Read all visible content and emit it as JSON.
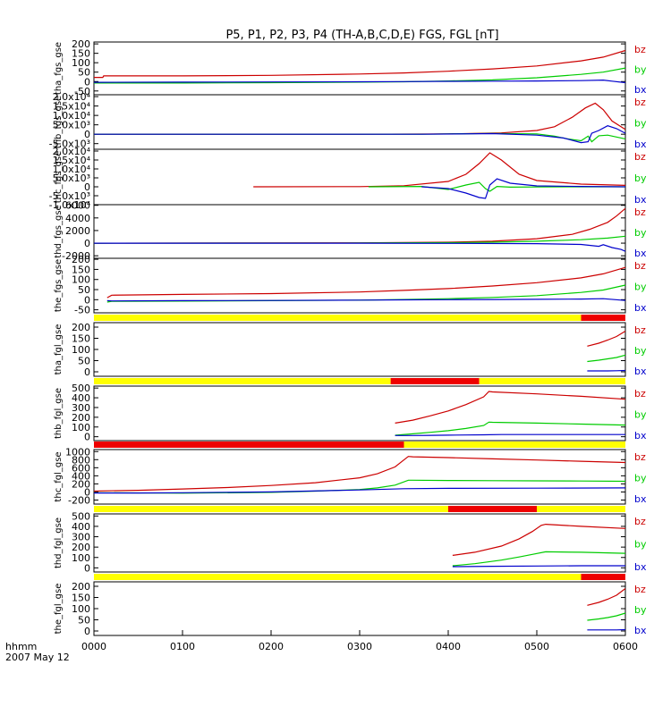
{
  "title": "P5, P1, P2, P3, P4 (TH-A,B,C,D,E) FGS, FGL [nT]",
  "time_axis": {
    "label": "hhmm",
    "date": "2007 May 12",
    "ticks": [
      "0000",
      "0100",
      "0200",
      "0300",
      "0400",
      "0500",
      "0600"
    ],
    "range_hours": [
      0,
      6
    ]
  },
  "colors": {
    "bx": "#0000cc",
    "by": "#00cc00",
    "bz": "#cc0000",
    "bar_yellow": "#ffff00",
    "bar_red": "#ee0000"
  },
  "chart_data": [
    {
      "type": "line",
      "title": "tha_fgs_gse",
      "ylabel": "tha_fgs_gse",
      "ylim": [
        -70,
        210
      ],
      "yticks": [
        "-50",
        "0",
        "50",
        "100",
        "150",
        "200"
      ],
      "legend": [
        "bz",
        "by",
        "bx"
      ],
      "series": [
        {
          "name": "bz",
          "x": [
            0,
            0.1,
            0.11,
            1,
            2,
            3,
            3.5,
            4,
            4.5,
            5,
            5.5,
            5.75,
            6
          ],
          "values": [
            22,
            22,
            30,
            30,
            33,
            40,
            46,
            55,
            67,
            83,
            110,
            130,
            165
          ]
        },
        {
          "name": "by",
          "x": [
            0,
            1,
            2,
            3,
            3.5,
            4,
            4.5,
            5,
            5.5,
            5.75,
            6
          ],
          "values": [
            -8,
            -8,
            -6,
            -3,
            -1,
            3,
            9,
            20,
            38,
            50,
            72
          ]
        },
        {
          "name": "bx",
          "x": [
            0,
            1,
            2,
            3,
            3.5,
            4,
            4.5,
            5,
            5.5,
            5.75,
            5.85,
            6
          ],
          "values": [
            -4,
            -3,
            -2,
            -1,
            0,
            1,
            2,
            3,
            5,
            8,
            2,
            -6
          ]
        }
      ]
    },
    {
      "type": "line",
      "title": "thb_fgs_gse",
      "ylabel": "thb_fgs_gse",
      "ylim": [
        -8000,
        21000
      ],
      "yticks": [
        "-5.0x10³",
        "0",
        "5.0x10³",
        "1.0x10⁴",
        "1.5x10⁴",
        "2.0x10⁴"
      ],
      "legend": [
        "bz",
        "by",
        "bx"
      ],
      "series": [
        {
          "name": "bz",
          "x": [
            0,
            3,
            4,
            4.6,
            5,
            5.2,
            5.4,
            5.55,
            5.66,
            5.75,
            5.85,
            6
          ],
          "values": [
            0,
            0,
            200,
            700,
            2000,
            4000,
            9000,
            14000,
            16500,
            13000,
            7000,
            2500
          ]
        },
        {
          "name": "by",
          "x": [
            0,
            3.7,
            4.5,
            5,
            5.2,
            5.35,
            5.5,
            5.58,
            5.62,
            5.7,
            5.8,
            6
          ],
          "values": [
            0,
            0,
            400,
            200,
            -1000,
            -2500,
            -3500,
            -1000,
            -4000,
            -800,
            -500,
            -2500
          ]
        },
        {
          "name": "bx",
          "x": [
            0,
            3.7,
            4.5,
            5,
            5.3,
            5.5,
            5.58,
            5.62,
            5.7,
            5.8,
            5.9,
            6
          ],
          "values": [
            0,
            0,
            300,
            -500,
            -2000,
            -4500,
            -4000,
            500,
            2000,
            4500,
            3000,
            500
          ]
        }
      ]
    },
    {
      "type": "line",
      "title": "thc_fgs_gse",
      "ylabel": "thc_fgs_gse",
      "ylim": [
        -10000,
        21000
      ],
      "yticks": [
        "-1.0x10⁴",
        "-5.0x10³",
        "0",
        "5.0x10³",
        "1.0x10⁴",
        "1.5x10⁴",
        "2.0x10⁴"
      ],
      "legend": [
        "bz",
        "by",
        "bx"
      ],
      "series": [
        {
          "name": "bz",
          "x": [
            1.8,
            3,
            3.5,
            4,
            4.2,
            4.35,
            4.47,
            4.6,
            4.8,
            5,
            5.5,
            6
          ],
          "values": [
            0,
            100,
            600,
            3000,
            7000,
            13000,
            19000,
            15000,
            7000,
            3500,
            1500,
            800
          ]
        },
        {
          "name": "by",
          "x": [
            3.1,
            3.7,
            4,
            4.2,
            4.35,
            4.42,
            4.47,
            4.55,
            4.7,
            5,
            5.5,
            6
          ],
          "values": [
            0,
            200,
            -1500,
            1000,
            2500,
            -1000,
            -2500,
            200,
            -200,
            -100,
            0,
            0
          ]
        },
        {
          "name": "bx",
          "x": [
            3.7,
            4,
            4.2,
            4.35,
            4.42,
            4.47,
            4.55,
            4.7,
            5,
            5.5,
            6
          ],
          "values": [
            0,
            -1000,
            -3500,
            -6000,
            -6500,
            1000,
            4500,
            2000,
            500,
            200,
            0
          ]
        }
      ]
    },
    {
      "type": "line",
      "title": "thd_fgs_gse",
      "ylabel": "thd_fgs_gse",
      "ylim": [
        -2400,
        6100
      ],
      "yticks": [
        "-2000",
        "0",
        "2000",
        "4000",
        "6000"
      ],
      "legend": [
        "bz",
        "by",
        "bx"
      ],
      "series": [
        {
          "name": "bz",
          "x": [
            0,
            3,
            4,
            4.5,
            5,
            5.4,
            5.6,
            5.8,
            5.9,
            6
          ],
          "values": [
            0,
            50,
            150,
            300,
            700,
            1400,
            2200,
            3300,
            4300,
            5500
          ]
        },
        {
          "name": "by",
          "x": [
            0,
            3,
            4,
            4.5,
            5,
            5.5,
            5.8,
            6
          ],
          "values": [
            0,
            20,
            80,
            150,
            300,
            550,
            800,
            1100
          ]
        },
        {
          "name": "bx",
          "x": [
            0,
            3,
            4,
            5,
            5.5,
            5.7,
            5.75,
            5.85,
            5.95,
            6
          ],
          "values": [
            0,
            -10,
            -30,
            -80,
            -200,
            -500,
            -250,
            -700,
            -1000,
            -1300
          ]
        }
      ]
    },
    {
      "type": "line",
      "title": "the_fgs_gse",
      "ylabel": "the_fgs_gse",
      "ylim": [
        -65,
        205
      ],
      "yticks": [
        "-50",
        "0",
        "50",
        "100",
        "150",
        "200"
      ],
      "legend": [
        "bz",
        "by",
        "bx"
      ],
      "series": [
        {
          "name": "bz",
          "x": [
            0.15,
            0.2,
            1,
            2,
            3,
            3.5,
            4,
            4.5,
            5,
            5.5,
            5.75,
            6
          ],
          "values": [
            10,
            22,
            26,
            30,
            38,
            46,
            55,
            68,
            84,
            108,
            128,
            160
          ]
        },
        {
          "name": "by",
          "x": [
            0.15,
            0.2,
            1,
            2,
            3,
            3.5,
            4,
            4.5,
            5,
            5.5,
            5.75,
            6
          ],
          "values": [
            -12,
            -8,
            -7,
            -5,
            -2,
            1,
            5,
            11,
            20,
            36,
            48,
            72
          ]
        },
        {
          "name": "bx",
          "x": [
            0.15,
            0.2,
            1,
            2,
            3,
            3.5,
            4,
            4.5,
            5,
            5.5,
            5.75,
            6
          ],
          "values": [
            -5,
            -6,
            -5,
            -4,
            -2,
            -1,
            0,
            1,
            2,
            3,
            5,
            -4
          ]
        }
      ]
    },
    {
      "type": "line",
      "title": "tha_fgl_gse",
      "ylabel": "tha_fgl_gse",
      "ylim": [
        -20,
        220
      ],
      "yticks": [
        "0",
        "50",
        "100",
        "150",
        "200"
      ],
      "legend": [
        "bz",
        "by",
        "bx"
      ],
      "series": [
        {
          "name": "bz",
          "x": [
            5.57,
            5.7,
            5.8,
            5.9,
            6
          ],
          "values": [
            115,
            128,
            142,
            158,
            182
          ]
        },
        {
          "name": "by",
          "x": [
            5.57,
            5.7,
            5.8,
            5.9,
            6
          ],
          "values": [
            46,
            52,
            58,
            64,
            75
          ]
        },
        {
          "name": "bx",
          "x": [
            5.57,
            5.7,
            5.8,
            5.9,
            6
          ],
          "values": [
            4,
            4,
            4,
            5,
            6
          ]
        }
      ]
    },
    {
      "type": "line",
      "title": "thb_fgl_gse",
      "ylabel": "thb_fgl_gse",
      "ylim": [
        -40,
        520
      ],
      "yticks": [
        "0",
        "100",
        "200",
        "300",
        "400",
        "500"
      ],
      "legend": [
        "bz",
        "by",
        "bx"
      ],
      "series": [
        {
          "name": "bz",
          "x": [
            3.4,
            3.6,
            3.8,
            4,
            4.2,
            4.4,
            4.46,
            4.5,
            5,
            5.5,
            6
          ],
          "values": [
            140,
            170,
            215,
            265,
            330,
            410,
            465,
            460,
            440,
            415,
            385
          ]
        },
        {
          "name": "by",
          "x": [
            3.4,
            3.6,
            3.8,
            4,
            4.2,
            4.4,
            4.46,
            4.5,
            5,
            5.5,
            6
          ],
          "values": [
            15,
            30,
            45,
            62,
            85,
            115,
            150,
            148,
            140,
            130,
            120
          ]
        },
        {
          "name": "bx",
          "x": [
            3.4,
            3.6,
            3.8,
            4,
            4.2,
            4.4,
            4.6,
            5,
            5.5,
            6
          ],
          "values": [
            12,
            12,
            14,
            16,
            18,
            20,
            22,
            22,
            22,
            22
          ]
        }
      ]
    },
    {
      "type": "line",
      "title": "thc_fgl_gse",
      "ylabel": "thc_fgl_gse",
      "ylim": [
        -300,
        1050
      ],
      "yticks": [
        "-200",
        "0",
        "200",
        "400",
        "600",
        "800",
        "1000"
      ],
      "legend": [
        "bz",
        "by",
        "bx"
      ],
      "series": [
        {
          "name": "bz",
          "x": [
            0,
            0.5,
            1,
            1.5,
            2,
            2.5,
            3,
            3.2,
            3.4,
            3.55,
            3.6,
            4,
            4.5,
            5,
            5.5,
            6
          ],
          "values": [
            20,
            40,
            75,
            110,
            160,
            230,
            350,
            450,
            620,
            880,
            870,
            850,
            820,
            790,
            760,
            730
          ]
        },
        {
          "name": "by",
          "x": [
            0,
            1,
            2,
            2.5,
            3,
            3.2,
            3.4,
            3.55,
            3.6,
            4,
            4.5,
            5,
            5.5,
            6
          ],
          "values": [
            -20,
            -30,
            -10,
            20,
            60,
            100,
            170,
            290,
            290,
            285,
            280,
            275,
            270,
            265
          ]
        },
        {
          "name": "bx",
          "x": [
            0,
            0.5,
            1,
            2,
            3,
            3.5,
            4,
            5,
            6
          ],
          "values": [
            -25,
            -25,
            -20,
            0,
            50,
            80,
            90,
            95,
            100
          ]
        }
      ]
    },
    {
      "type": "line",
      "title": "thd_fgl_gse",
      "ylabel": "thd_fgl_gse",
      "ylim": [
        -40,
        520
      ],
      "yticks": [
        "0",
        "100",
        "200",
        "300",
        "400",
        "500"
      ],
      "legend": [
        "bz",
        "by",
        "bx"
      ],
      "series": [
        {
          "name": "bz",
          "x": [
            4.05,
            4.3,
            4.6,
            4.8,
            4.95,
            5.05,
            5.1,
            5.5,
            6
          ],
          "values": [
            120,
            150,
            210,
            280,
            350,
            410,
            420,
            400,
            380
          ]
        },
        {
          "name": "by",
          "x": [
            4.05,
            4.3,
            4.6,
            4.8,
            4.95,
            5.1,
            5.5,
            6
          ],
          "values": [
            20,
            40,
            75,
            105,
            130,
            155,
            150,
            140
          ]
        },
        {
          "name": "bx",
          "x": [
            4.05,
            4.5,
            5,
            5.5,
            6
          ],
          "values": [
            12,
            15,
            18,
            20,
            20
          ]
        }
      ]
    },
    {
      "type": "line",
      "title": "the_fgl_gse",
      "ylabel": "the_fgl_gse",
      "ylim": [
        -20,
        220
      ],
      "yticks": [
        "0",
        "50",
        "100",
        "150",
        "200"
      ],
      "legend": [
        "bz",
        "by",
        "bx"
      ],
      "series": [
        {
          "name": "bz",
          "x": [
            5.57,
            5.7,
            5.8,
            5.9,
            6
          ],
          "values": [
            115,
            128,
            142,
            160,
            190
          ]
        },
        {
          "name": "by",
          "x": [
            5.57,
            5.7,
            5.8,
            5.9,
            6
          ],
          "values": [
            48,
            54,
            60,
            68,
            80
          ]
        },
        {
          "name": "bx",
          "x": [
            5.57,
            5.7,
            5.8,
            5.9,
            6
          ],
          "values": [
            5,
            5,
            5,
            5,
            6
          ]
        }
      ]
    }
  ],
  "mode_bars": [
    {
      "after_panel": 4,
      "segments": [
        {
          "from": 0,
          "to": 5.5,
          "color": "yellow"
        },
        {
          "from": 5.5,
          "to": 6,
          "color": "red"
        }
      ]
    },
    {
      "after_panel": 5,
      "segments": [
        {
          "from": 0,
          "to": 3.35,
          "color": "yellow"
        },
        {
          "from": 3.35,
          "to": 4.35,
          "color": "red"
        },
        {
          "from": 4.35,
          "to": 6,
          "color": "yellow"
        }
      ]
    },
    {
      "after_panel": 6,
      "segments": [
        {
          "from": 0,
          "to": 3.5,
          "color": "red"
        },
        {
          "from": 3.5,
          "to": 6,
          "color": "yellow"
        }
      ]
    },
    {
      "after_panel": 7,
      "segments": [
        {
          "from": 0,
          "to": 4,
          "color": "yellow"
        },
        {
          "from": 4,
          "to": 5,
          "color": "red"
        },
        {
          "from": 5,
          "to": 6,
          "color": "yellow"
        }
      ]
    },
    {
      "after_panel": 8,
      "segments": [
        {
          "from": 0,
          "to": 5.5,
          "color": "yellow"
        },
        {
          "from": 5.5,
          "to": 6,
          "color": "red"
        }
      ]
    }
  ]
}
